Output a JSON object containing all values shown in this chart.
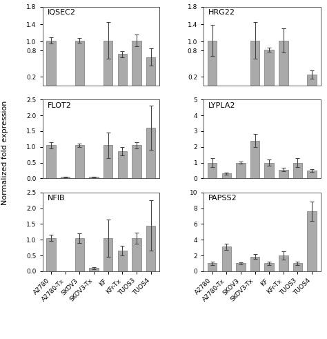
{
  "panels": [
    {
      "title": "IQSEC2",
      "values": [
        1.03,
        0.0,
        1.03,
        0.0,
        1.03,
        0.72,
        1.03,
        0.65
      ],
      "errors": [
        0.07,
        0.0,
        0.06,
        0.0,
        0.42,
        0.07,
        0.14,
        0.2
      ],
      "ylim": [
        0,
        1.8
      ],
      "yticks": [
        0.2,
        0.8,
        1.0,
        1.4,
        1.8
      ],
      "has_bar": [
        true,
        false,
        true,
        false,
        true,
        true,
        true,
        true
      ]
    },
    {
      "title": "HRG22",
      "values": [
        1.03,
        0.0,
        0.0,
        1.03,
        0.82,
        1.03,
        0.0,
        0.25
      ],
      "errors": [
        0.35,
        0.0,
        0.0,
        0.42,
        0.05,
        0.28,
        0.0,
        0.1
      ],
      "ylim": [
        0,
        1.8
      ],
      "yticks": [
        0.2,
        0.8,
        1.0,
        1.4,
        1.8
      ],
      "has_bar": [
        true,
        false,
        false,
        true,
        true,
        true,
        false,
        true
      ]
    },
    {
      "title": "FLOT2",
      "values": [
        1.05,
        0.04,
        1.05,
        0.04,
        1.05,
        0.87,
        1.05,
        1.6
      ],
      "errors": [
        0.1,
        0.02,
        0.05,
        0.02,
        0.4,
        0.13,
        0.1,
        0.7
      ],
      "ylim": [
        0,
        2.5
      ],
      "yticks": [
        0.0,
        0.5,
        1.0,
        1.5,
        2.0,
        2.5
      ],
      "has_bar": [
        true,
        true,
        true,
        true,
        true,
        true,
        true,
        true
      ]
    },
    {
      "title": "LYPLA2",
      "values": [
        1.0,
        0.3,
        1.0,
        2.4,
        1.0,
        0.55,
        1.0,
        0.5
      ],
      "errors": [
        0.3,
        0.05,
        0.05,
        0.4,
        0.2,
        0.1,
        0.3,
        0.1
      ],
      "ylim": [
        0,
        5
      ],
      "yticks": [
        0,
        1,
        2,
        3,
        4,
        5
      ],
      "has_bar": [
        true,
        true,
        true,
        true,
        true,
        true,
        true,
        true
      ]
    },
    {
      "title": "NFIB",
      "values": [
        1.05,
        0.0,
        1.05,
        0.1,
        1.05,
        0.65,
        1.05,
        1.45
      ],
      "errors": [
        0.1,
        0.0,
        0.15,
        0.03,
        0.6,
        0.15,
        0.18,
        0.8
      ],
      "ylim": [
        0,
        2.5
      ],
      "yticks": [
        0.0,
        0.5,
        1.0,
        1.5,
        2.0,
        2.5
      ],
      "has_bar": [
        true,
        false,
        true,
        true,
        true,
        true,
        true,
        true
      ]
    },
    {
      "title": "PAPSS2",
      "values": [
        1.0,
        3.1,
        1.0,
        1.85,
        1.0,
        2.0,
        1.0,
        7.6
      ],
      "errors": [
        0.2,
        0.4,
        0.15,
        0.3,
        0.2,
        0.5,
        0.2,
        1.2
      ],
      "ylim": [
        0,
        10
      ],
      "yticks": [
        0,
        2,
        4,
        6,
        8,
        10
      ],
      "has_bar": [
        true,
        true,
        true,
        true,
        true,
        true,
        true,
        true
      ]
    }
  ],
  "categories": [
    "A2780",
    "A2780-Tx",
    "SKOV3",
    "SKOV3-Tx",
    "KF",
    "KFr-Tx",
    "TUOS3",
    "TUOS4"
  ],
  "bar_color": "#aaaaaa",
  "bar_edgecolor": "#777777",
  "bar_width": 0.65,
  "error_capsize": 2,
  "error_color": "#444444",
  "xlabel_rotation": 45,
  "ylabel": "Normalized fold expression",
  "title_fontsize": 8,
  "tick_fontsize": 6.5,
  "label_fontsize": 8,
  "background_color": "#ffffff"
}
